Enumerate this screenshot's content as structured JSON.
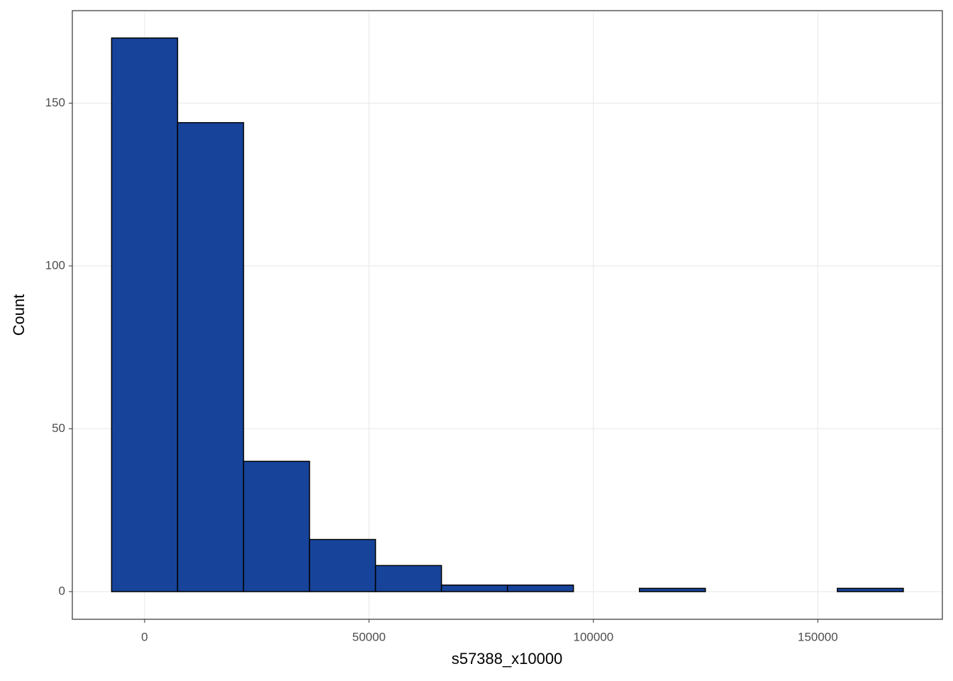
{
  "chart_data": {
    "type": "histogram",
    "x_label": "s57388_x10000",
    "y_label": "Count",
    "bins": [
      -7350,
      7350,
      22050,
      36750,
      51450,
      66150,
      80850,
      95550,
      110250,
      124950,
      139650,
      154350,
      169050
    ],
    "counts": [
      170,
      144,
      40,
      16,
      8,
      2,
      2,
      0,
      1,
      0,
      0,
      1
    ],
    "color": "#17449a",
    "edge_color": "#000000",
    "xlim": [
      -16100,
      177750
    ],
    "xticks": [
      0,
      50000,
      100000,
      150000
    ],
    "ylim": [
      -8.5,
      178.4
    ],
    "yticks": [
      0,
      50,
      100,
      150
    ],
    "grid": true
  }
}
